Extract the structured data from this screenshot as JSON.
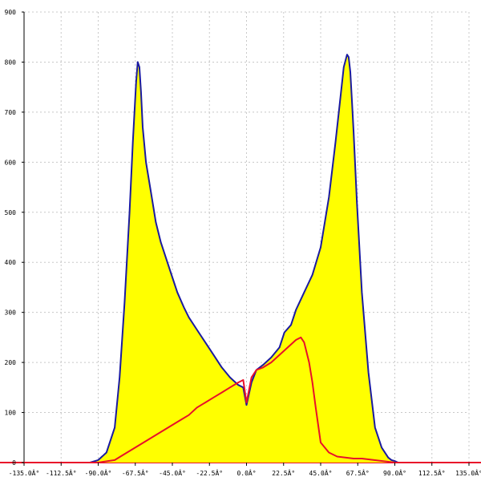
{
  "chart_data": {
    "type": "area",
    "title": "",
    "xlabel": "",
    "ylabel": "",
    "xlim": [
      -135,
      135
    ],
    "ylim": [
      0,
      900
    ],
    "grid": true,
    "x_ticks": [
      -135,
      -112.5,
      -90,
      -67.5,
      -45,
      -22.5,
      0,
      22.5,
      45,
      67.5,
      90,
      112.5,
      135
    ],
    "x_tick_labels": [
      "-135.0Â°",
      "-112.5Â°",
      "-90.0Â°",
      "-67.5Â°",
      "-45.0Â°",
      "-22.5Â°",
      "0.0Â°",
      "22.5Â°",
      "45.0Â°",
      "67.5Â°",
      "90.0Â°",
      "112.5Â°",
      "135.0Â°"
    ],
    "y_ticks": [
      0,
      100,
      200,
      300,
      400,
      500,
      600,
      700,
      800,
      900
    ],
    "y_tick_labels": [
      "0",
      "100",
      "200",
      "300",
      "400",
      "500",
      "600",
      "700",
      "800",
      "900"
    ],
    "series": [
      {
        "kind": "filled-area",
        "color": "#1a1aa0",
        "fill": "#ffff00",
        "x": [
          -135,
          -95,
          -90,
          -85,
          -80,
          -77,
          -74,
          -71,
          -69,
          -67,
          -66,
          -65,
          -64,
          -63,
          -61,
          -58,
          -55,
          -52,
          -48,
          -45,
          -42,
          -38,
          -35,
          -30,
          -25,
          -20,
          -15,
          -10,
          -5,
          -2,
          0,
          3,
          6,
          10,
          15,
          20,
          23,
          27,
          30,
          35,
          40,
          45,
          50,
          54,
          57,
          59,
          61,
          62,
          63,
          64,
          65,
          67,
          70,
          74,
          78,
          82,
          86,
          88,
          90,
          92,
          135
        ],
        "y": [
          0,
          0,
          5,
          20,
          70,
          170,
          320,
          500,
          640,
          760,
          800,
          790,
          740,
          670,
          600,
          540,
          480,
          440,
          400,
          370,
          340,
          310,
          290,
          265,
          240,
          215,
          190,
          170,
          155,
          150,
          115,
          160,
          185,
          195,
          210,
          230,
          260,
          275,
          305,
          340,
          375,
          430,
          530,
          640,
          730,
          790,
          815,
          810,
          780,
          720,
          660,
          520,
          340,
          180,
          70,
          30,
          10,
          5,
          3,
          0,
          0
        ]
      },
      {
        "kind": "line",
        "color": "#e8102a",
        "x": [
          -135,
          -90,
          -80,
          -75,
          -70,
          -65,
          -60,
          -50,
          -40,
          -35,
          -30,
          -25,
          -20,
          -15,
          -10,
          -5,
          -2,
          0,
          3,
          6,
          10,
          15,
          20,
          25,
          30,
          33,
          35,
          38,
          40,
          42,
          45,
          50,
          55,
          60,
          65,
          70,
          75,
          80,
          90,
          135
        ],
        "y": [
          0,
          0,
          5,
          15,
          25,
          35,
          45,
          65,
          85,
          95,
          110,
          120,
          130,
          140,
          150,
          160,
          165,
          120,
          170,
          185,
          190,
          200,
          215,
          230,
          245,
          250,
          240,
          200,
          160,
          110,
          40,
          20,
          12,
          10,
          8,
          8,
          6,
          4,
          0,
          0
        ]
      }
    ]
  }
}
